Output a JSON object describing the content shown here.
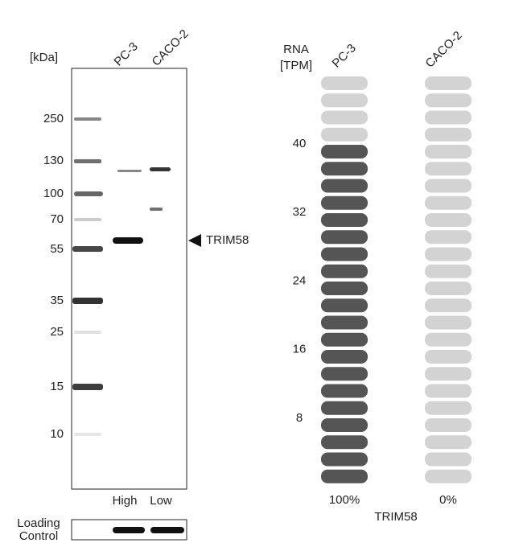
{
  "western_blot": {
    "unit_label": "[kDa]",
    "lanes": [
      "PC-3",
      "CACO-2"
    ],
    "markers": [
      "250",
      "130",
      "100",
      "70",
      "55",
      "35",
      "25",
      "15",
      "10"
    ],
    "target": "TRIM58",
    "lane_levels": [
      "High",
      "Low"
    ],
    "loading_control": [
      "Loading",
      "Control"
    ]
  },
  "rna": {
    "title": "RNA",
    "unit": "[TPM]",
    "cell_lines": [
      "PC-3",
      "CACO-2"
    ],
    "scale_labels": [
      "40",
      "32",
      "24",
      "16",
      "8"
    ],
    "percentages": [
      "100%",
      "0%"
    ],
    "gene": "TRIM58"
  }
}
